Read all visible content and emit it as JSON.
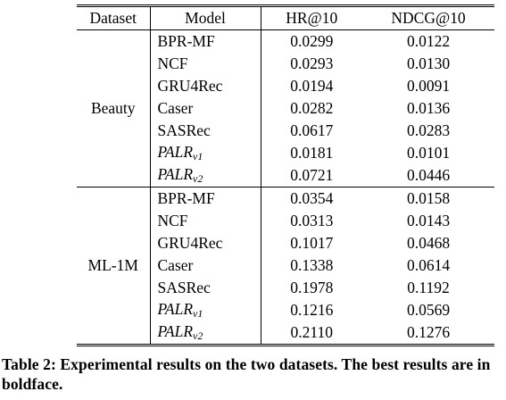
{
  "table": {
    "headers": [
      "Dataset",
      "Model",
      "HR@10",
      "NDCG@10"
    ],
    "groups": [
      {
        "dataset": "Beauty",
        "rows": [
          {
            "model": "BPR-MF",
            "model_sub": "",
            "hr": "0.0299",
            "ndcg": "0.0122",
            "bold": false
          },
          {
            "model": "NCF",
            "model_sub": "",
            "hr": "0.0293",
            "ndcg": "0.0130",
            "bold": false
          },
          {
            "model": "GRU4Rec",
            "model_sub": "",
            "hr": "0.0194",
            "ndcg": "0.0091",
            "bold": false
          },
          {
            "model": "Caser",
            "model_sub": "",
            "hr": "0.0282",
            "ndcg": "0.0136",
            "bold": false
          },
          {
            "model": "SASRec",
            "model_sub": "",
            "hr": "0.0617",
            "ndcg": "0.0283",
            "bold": false
          },
          {
            "model": "PALR",
            "model_sub": "v1",
            "hr": "0.0181",
            "ndcg": "0.0101",
            "bold": false
          },
          {
            "model": "PALR",
            "model_sub": "v2",
            "hr": "0.0721",
            "ndcg": "0.0446",
            "bold": true
          }
        ]
      },
      {
        "dataset": "ML-1M",
        "rows": [
          {
            "model": "BPR-MF",
            "model_sub": "",
            "hr": "0.0354",
            "ndcg": "0.0158",
            "bold": false
          },
          {
            "model": "NCF",
            "model_sub": "",
            "hr": "0.0313",
            "ndcg": "0.0143",
            "bold": false
          },
          {
            "model": "GRU4Rec",
            "model_sub": "",
            "hr": "0.1017",
            "ndcg": "0.0468",
            "bold": false
          },
          {
            "model": "Caser",
            "model_sub": "",
            "hr": "0.1338",
            "ndcg": "0.0614",
            "bold": false
          },
          {
            "model": "SASRec",
            "model_sub": "",
            "hr": "0.1978",
            "ndcg": "0.1192",
            "bold": false
          },
          {
            "model": "PALR",
            "model_sub": "v1",
            "hr": "0.1216",
            "ndcg": "0.0569",
            "bold": false
          },
          {
            "model": "PALR",
            "model_sub": "v2",
            "hr": "0.2110",
            "ndcg": "0.1276",
            "bold": true
          }
        ]
      }
    ]
  },
  "caption": "Table 2: Experimental results on the two datasets. The best results are in boldface."
}
